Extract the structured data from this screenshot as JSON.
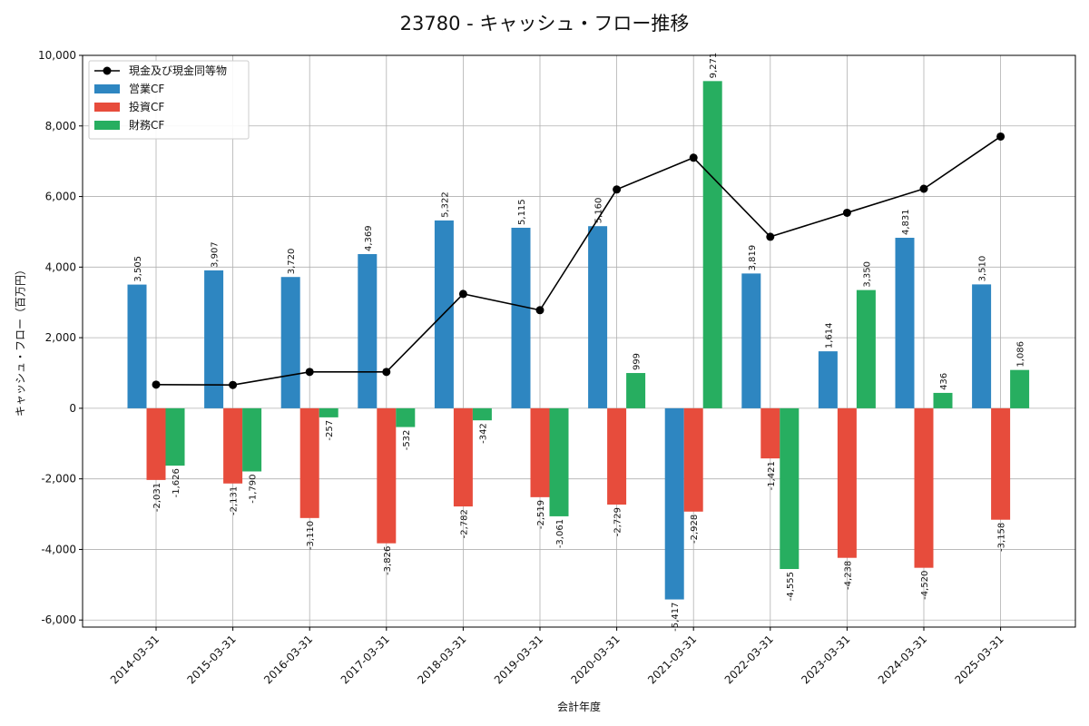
{
  "chart_data": {
    "type": "bar",
    "title": "23780 - キャッシュ・フロー推移",
    "xlabel": "会計年度",
    "ylabel": "キャッシュ・フロー（百万円）",
    "ylim": [
      -6200,
      10000
    ],
    "yticks": [
      -6000,
      -4000,
      -2000,
      0,
      2000,
      4000,
      6000,
      8000,
      10000
    ],
    "ytick_labels": [
      "-6,000",
      "-4,000",
      "-2,000",
      "0",
      "2,000",
      "4,000",
      "6,000",
      "8,000",
      "10,000"
    ],
    "grid": true,
    "legend_position": "top-left",
    "categories": [
      "2014-03-31",
      "2015-03-31",
      "2016-03-31",
      "2017-03-31",
      "2018-03-31",
      "2019-03-31",
      "2020-03-31",
      "2021-03-31",
      "2022-03-31",
      "2023-03-31",
      "2024-03-31",
      "2025-03-31"
    ],
    "series": [
      {
        "name": "営業CF",
        "kind": "bar",
        "color": "#2e86c1",
        "values": [
          3505,
          3907,
          3720,
          4369,
          5322,
          5115,
          5160,
          -5417,
          3819,
          1614,
          4831,
          3510
        ],
        "labels": [
          "3,505",
          "3,907",
          "3,720",
          "4,369",
          "5,322",
          "5,115",
          "5,160",
          "-5,417",
          "3,819",
          "1,614",
          "4,831",
          "3,510"
        ]
      },
      {
        "name": "投資CF",
        "kind": "bar",
        "color": "#e74c3c",
        "values": [
          -2031,
          -2131,
          -3110,
          -3826,
          -2782,
          -2519,
          -2729,
          -2928,
          -1421,
          -4238,
          -4520,
          -3158
        ],
        "labels": [
          "-2,031",
          "-2,131",
          "-3,110",
          "-3,826",
          "-2,782",
          "-2,519",
          "-2,729",
          "-2,928",
          "-1,421",
          "-4,238",
          "-4,520",
          "-3,158"
        ]
      },
      {
        "name": "財務CF",
        "kind": "bar",
        "color": "#27ae60",
        "values": [
          -1626,
          -1790,
          -257,
          -532,
          -342,
          -3061,
          999,
          9271,
          -4555,
          3350,
          436,
          1086
        ],
        "labels": [
          "-1,626",
          "-1,790",
          "-257",
          "-532",
          "-342",
          "-3,061",
          "999",
          "9,271",
          "-4,555",
          "3,350",
          "436",
          "1,086"
        ]
      },
      {
        "name": "現金及び現金同等物",
        "kind": "line",
        "color": "#000000",
        "values": [
          670,
          660,
          1030,
          1030,
          3240,
          2780,
          6200,
          7100,
          4860,
          5540,
          6220,
          7700
        ]
      }
    ]
  }
}
